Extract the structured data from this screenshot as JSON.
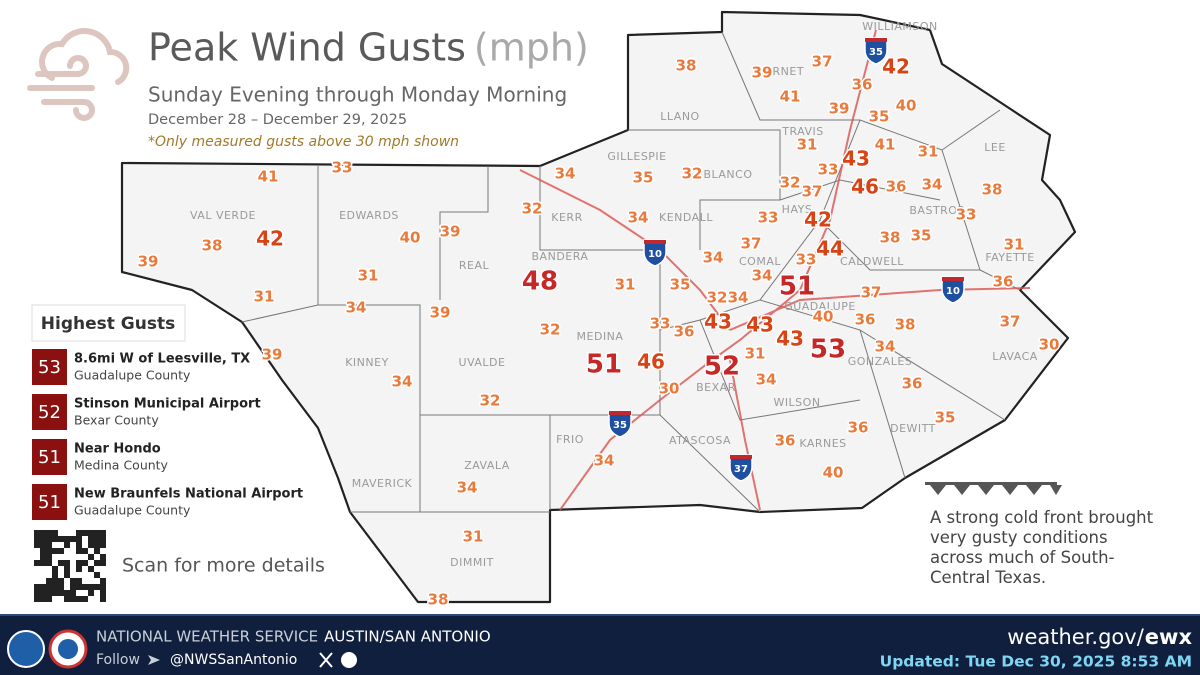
{
  "header": {
    "title": "Peak Wind Gusts",
    "units": "(mph)",
    "subtitle": "Sunday Evening through Monday Morning",
    "dates": "December 28 – December 29, 2025",
    "note": "*Only measured gusts above 30 mph shown"
  },
  "highest_gusts": {
    "title": "Highest Gusts",
    "items": [
      {
        "value": 53,
        "location": "8.6mi W of Leesville, TX",
        "county": "Guadalupe County"
      },
      {
        "value": 52,
        "location": "Stinson Municipal Airport",
        "county": "Bexar County"
      },
      {
        "value": 51,
        "location": "Near Hondo",
        "county": "Medina County"
      },
      {
        "value": 51,
        "location": "New Braunfels National Airport",
        "county": "Guadalupe County"
      }
    ]
  },
  "map": {
    "counties": [
      "WILLIAMSON",
      "BURNET",
      "LLANO",
      "TRAVIS",
      "LEE",
      "GILLESPIE",
      "BLANCO",
      "HAYS",
      "BASTROP",
      "VAL VERDE",
      "EDWARDS",
      "KERR",
      "KENDALL",
      "REAL",
      "BANDERA",
      "COMAL",
      "CALDWELL",
      "FAYETTE",
      "GUADALUPE",
      "KINNEY",
      "MEDINA",
      "UVALDE",
      "GONZALES",
      "LAVACA",
      "BEXAR",
      "WILSON",
      "FRIO",
      "ATASCOSA",
      "KARNES",
      "DEWITT",
      "ZAVALA",
      "MAVERICK",
      "DIMMIT"
    ],
    "gusts": [
      38,
      39,
      37,
      42,
      41,
      36,
      39,
      40,
      35,
      31,
      41,
      31,
      43,
      33,
      46,
      36,
      34,
      38,
      32,
      37,
      34,
      35,
      32,
      33,
      41,
      32,
      34,
      33,
      42,
      33,
      38,
      35,
      31,
      40,
      39,
      42,
      38,
      39,
      37,
      44,
      34,
      33,
      48,
      31,
      31,
      34,
      51,
      35,
      32,
      34,
      37,
      36,
      31,
      34,
      39,
      32,
      33,
      36,
      43,
      43,
      40,
      36,
      38,
      37,
      30,
      43,
      53,
      34,
      39,
      51,
      46,
      52,
      31,
      34,
      30,
      34,
      36,
      32,
      35,
      36,
      36,
      34,
      40,
      34,
      31,
      38
    ],
    "highways": [
      35,
      10,
      10,
      35,
      37
    ]
  },
  "qr_caption": "Scan for more details",
  "front_note": "A strong cold front brought very gusty conditions across much of South-Central Texas.",
  "footer": {
    "agency": "NATIONAL WEATHER SERVICE",
    "office": "AUSTIN/SAN ANTONIO",
    "follow": "Follow",
    "handle": "@NWSSanAntonio",
    "site": "weather.gov/",
    "site_office": "ewx",
    "updated": "Updated: Tue Dec 30, 2025 8:53 AM"
  }
}
